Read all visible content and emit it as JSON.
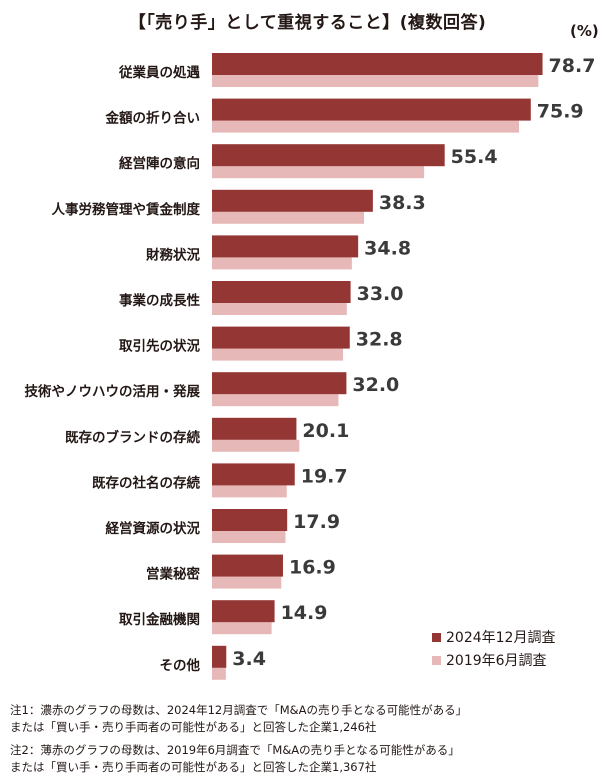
{
  "title": "【「売り手」として重視すること】(複数回答)",
  "unit": "(%)",
  "chart_data": {
    "type": "bar",
    "orientation": "horizontal",
    "categories": [
      "従業員の処遇",
      "金額の折り合い",
      "経営陣の意向",
      "人事労務管理や賃金制度",
      "財務状況",
      "事業の成長性",
      "取引先の状況",
      "技術やノウハウの活用・発展",
      "既存のブランドの存続",
      "既存の社名の存続",
      "経営資源の状況",
      "営業秘密",
      "取引金融機関",
      "その他"
    ],
    "series": [
      {
        "name": "2024年12月調査",
        "color": "#943634",
        "values": [
          78.7,
          75.9,
          55.4,
          38.3,
          34.8,
          33.0,
          32.8,
          32.0,
          20.1,
          19.7,
          17.9,
          16.9,
          14.9,
          3.4
        ],
        "labels": [
          "78.7",
          "75.9",
          "55.4",
          "38.3",
          "34.8",
          "33.0",
          "32.8",
          "32.0",
          "20.1",
          "19.7",
          "17.9",
          "16.9",
          "14.9",
          "3.4"
        ]
      },
      {
        "name": "2019年6月調査",
        "color": "#e6b9b8",
        "values": [
          77.7,
          73.1,
          50.5,
          36.2,
          33.3,
          32.1,
          31.2,
          30.1,
          20.8,
          17.8,
          17.5,
          16.5,
          14.2,
          3.3
        ]
      }
    ],
    "xlim": [
      0,
      80
    ],
    "legend_position": "bottom-right",
    "grid": false
  },
  "notes": [
    [
      "注1：濃赤のグラフの母数は、2024年12月調査で「M&Aの売り手となる可能性がある」",
      "または「買い手・売り手両者の可能性がある」と回答した企業1,246社"
    ],
    [
      "注2：薄赤のグラフの母数は、2019年6月調査で「M&Aの売り手となる可能性がある」",
      "または「買い手・売り手両者の可能性がある」と回答した企業1,367社"
    ]
  ]
}
